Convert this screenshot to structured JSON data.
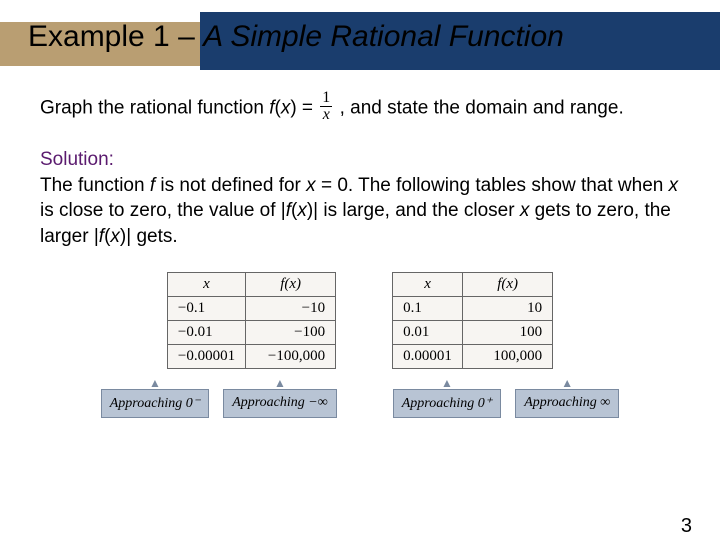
{
  "title": {
    "prefix": "Example 1 – ",
    "italic": "A Simple Rational Function"
  },
  "prompt": {
    "before_fx": "Graph the rational function ",
    "fx": "f",
    "x": "x",
    "equals": " = ",
    "frac_num": "1",
    "frac_den": "x",
    "after": " , and state the domain and range."
  },
  "solution": {
    "label": "Solution:",
    "body_a": "The function ",
    "body_b": " is not defined for ",
    "body_c": " = 0. The following tables show that when ",
    "body_d": " is close to zero, the value of |",
    "body_e": "| is large, and the closer ",
    "body_f": " gets to zero, the larger |",
    "body_g": "| gets."
  },
  "table_left": {
    "col1": "x",
    "col2_f": "f",
    "col2_x": "x",
    "rows": [
      {
        "x": "−0.1",
        "fx": "−10"
      },
      {
        "x": "−0.01",
        "fx": "−100"
      },
      {
        "x": "−0.00001",
        "fx": "−100,000"
      }
    ]
  },
  "table_right": {
    "col1": "x",
    "col2_f": "f",
    "col2_x": "x",
    "rows": [
      {
        "x": "0.1",
        "fx": "10"
      },
      {
        "x": "0.01",
        "fx": "100"
      },
      {
        "x": "0.00001",
        "fx": "100,000"
      }
    ]
  },
  "labels": {
    "l1": "Approaching 0⁻",
    "l2": "Approaching −∞",
    "r1": "Approaching 0⁺",
    "r2": "Approaching ∞"
  },
  "page": "3",
  "colors": {
    "tan": "#b99e72",
    "navy": "#1a3d6d",
    "purple": "#5a1a6e",
    "label_bg": "#b8c4d4"
  }
}
